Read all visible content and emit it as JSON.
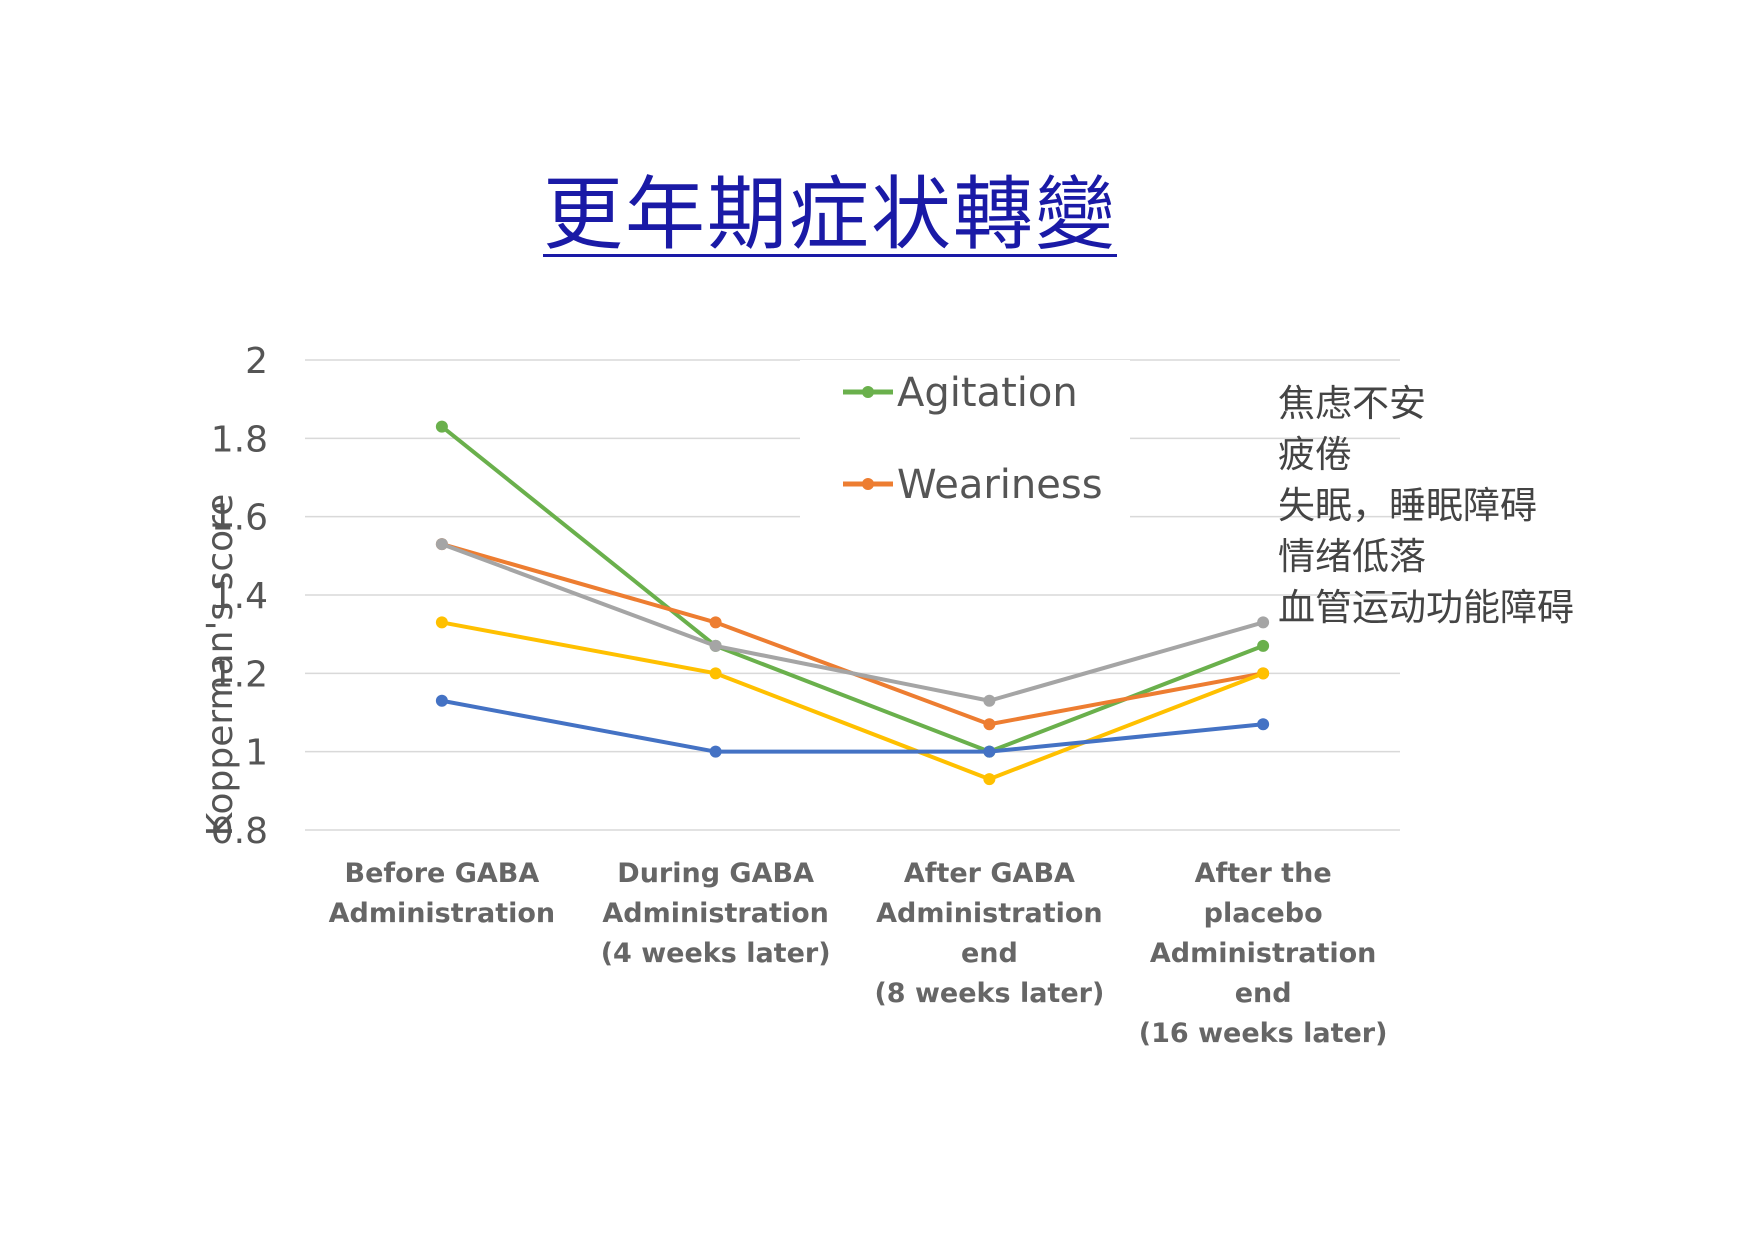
{
  "title": "更年期症状轉變",
  "chart_data": {
    "type": "line",
    "categories": [
      [
        "Before GABA",
        "Administration"
      ],
      [
        "During GABA",
        "Administration",
        "(4 weeks later)"
      ],
      [
        "After GABA",
        "Administration",
        "end",
        "(8 weeks later)"
      ],
      [
        "After the",
        "placebo",
        "Administration",
        "end",
        "(16 weeks later)"
      ]
    ],
    "ylabel": "Kopperman's score",
    "ylim": [
      0.8,
      2
    ],
    "yticks": [
      "2",
      "1.8",
      "1.6",
      "1.4",
      "1.2",
      "1",
      "0.8"
    ],
    "ytick_values": [
      2,
      1.8,
      1.6,
      1.4,
      1.2,
      1,
      0.8
    ],
    "grid": true,
    "legend_position": "top-center",
    "series": [
      {
        "name": "Agitation",
        "color": "#6ab04c",
        "values": [
          1.83,
          1.27,
          1.0,
          1.27
        ]
      },
      {
        "name": "Weariness",
        "color": "#ed7d31",
        "values": [
          1.53,
          1.33,
          1.07,
          1.2
        ]
      },
      {
        "color": "#a5a5a5",
        "values": [
          1.53,
          1.27,
          1.13,
          1.33
        ]
      },
      {
        "color": "#ffc000",
        "values": [
          1.33,
          1.2,
          0.93,
          1.2
        ]
      },
      {
        "color": "#4472c4",
        "values": [
          1.13,
          1.0,
          1.0,
          1.07
        ]
      }
    ]
  },
  "annotations": [
    "焦虑不安",
    "疲倦",
    "失眠，睡眠障碍",
    "情绪低落",
    "血管运动功能障碍"
  ]
}
